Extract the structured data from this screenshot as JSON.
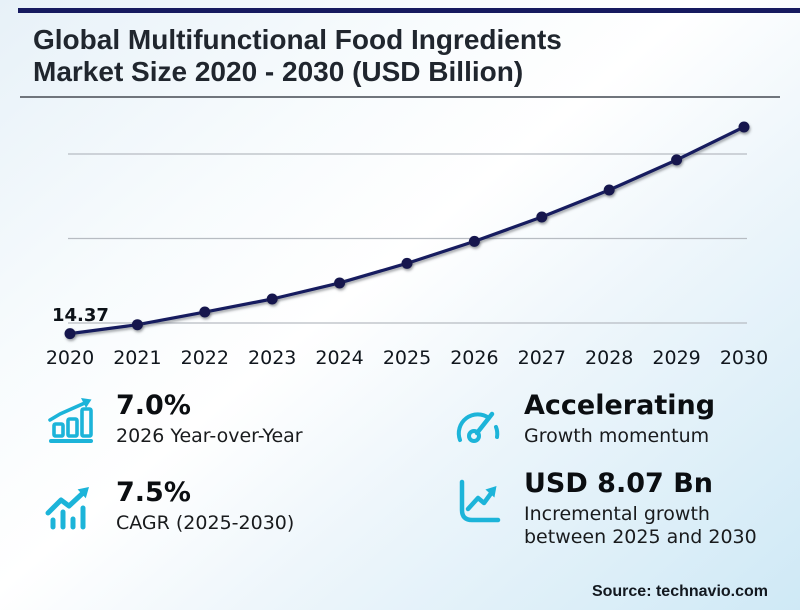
{
  "header": {
    "title_line1": "Global Multifunctional Food Ingredients",
    "title_line2": "Market Size 2020 - 2030 (USD Billion)"
  },
  "chart_data": {
    "type": "line",
    "title": "Global Multifunctional Food Ingredients Market Size 2020 - 2030 (USD Billion)",
    "units": "USD Billion",
    "x": [
      2020,
      2021,
      2022,
      2023,
      2024,
      2025,
      2026,
      2027,
      2028,
      2029,
      2030
    ],
    "values": [
      14.37,
      14.9,
      15.65,
      16.42,
      17.37,
      18.53,
      19.83,
      21.27,
      22.87,
      24.65,
      26.6
    ],
    "point_label": {
      "x": 2020,
      "text": "14.37"
    },
    "grid_values": [
      15,
      20,
      25
    ],
    "ylim": [
      13.5,
      28
    ],
    "grid": "horizontal-only",
    "legend": "none",
    "line_color": "#161a5f"
  },
  "stats": [
    {
      "icon": "bar-chart-rising-icon",
      "value": "7.0%",
      "label": "2026 Year-over-Year"
    },
    {
      "icon": "trend-arrow-bars-icon",
      "value": "7.5%",
      "label": "CAGR (2025-2030)"
    },
    {
      "icon": "speedometer-icon",
      "value": "Accelerating",
      "label": "Growth momentum"
    },
    {
      "icon": "axis-growth-arrow-icon",
      "value": "USD 8.07 Bn",
      "label": "Incremental growth between 2025 and 2030"
    }
  ],
  "footer": {
    "source_label": "Source: technavio.com"
  },
  "colors": {
    "accent": "#1cb4d9",
    "navy": "#161a5f",
    "grid": "#b7bcc2"
  }
}
